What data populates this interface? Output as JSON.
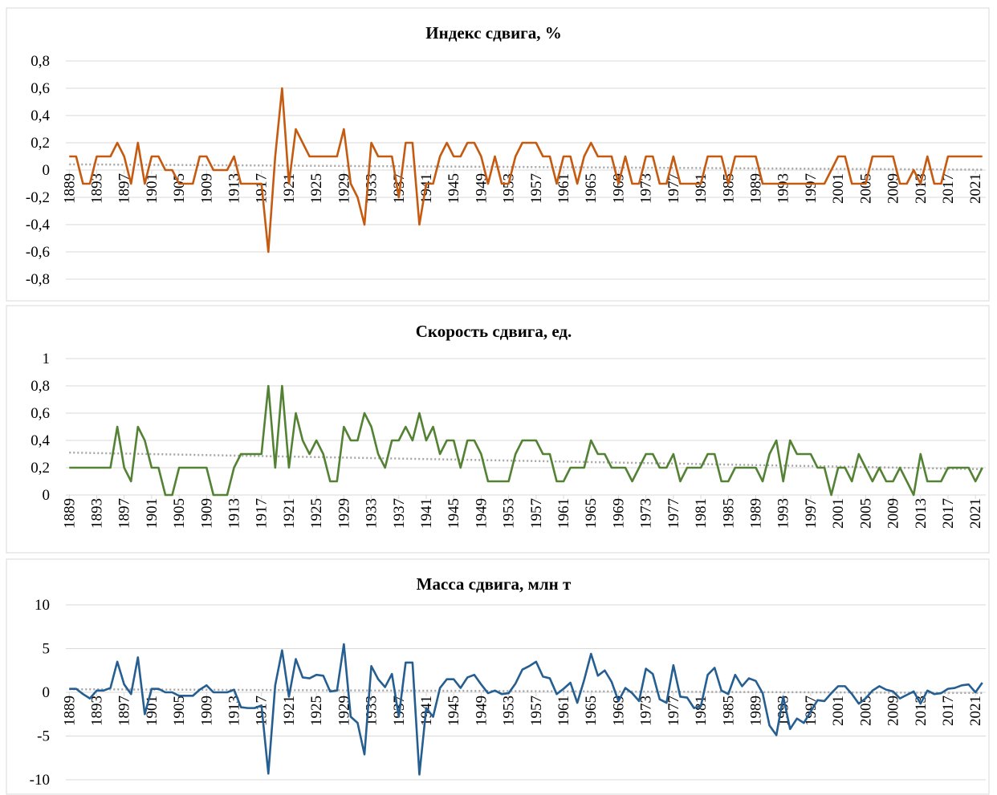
{
  "chart_data": [
    {
      "type": "line",
      "title": "Индекс сдвига, %",
      "x": [
        1889,
        1890,
        1891,
        1892,
        1893,
        1894,
        1895,
        1896,
        1897,
        1898,
        1899,
        1900,
        1901,
        1902,
        1903,
        1904,
        1905,
        1906,
        1907,
        1908,
        1909,
        1910,
        1911,
        1912,
        1913,
        1914,
        1915,
        1916,
        1917,
        1918,
        1919,
        1920,
        1921,
        1922,
        1923,
        1924,
        1925,
        1926,
        1927,
        1928,
        1929,
        1930,
        1931,
        1932,
        1933,
        1934,
        1935,
        1936,
        1937,
        1938,
        1939,
        1940,
        1941,
        1942,
        1943,
        1944,
        1945,
        1946,
        1947,
        1948,
        1949,
        1950,
        1951,
        1952,
        1953,
        1954,
        1955,
        1956,
        1957,
        1958,
        1959,
        1960,
        1961,
        1962,
        1963,
        1964,
        1965,
        1966,
        1967,
        1968,
        1969,
        1970,
        1971,
        1972,
        1973,
        1974,
        1975,
        1976,
        1977,
        1978,
        1979,
        1980,
        1981,
        1982,
        1983,
        1984,
        1985,
        1986,
        1987,
        1988,
        1989,
        1990,
        1991,
        1992,
        1993,
        1994,
        1995,
        1996,
        1997,
        1998,
        1999,
        2000,
        2001,
        2002,
        2003,
        2004,
        2005,
        2006,
        2007,
        2008,
        2009,
        2010,
        2011,
        2012,
        2013,
        2014,
        2015,
        2016,
        2017,
        2018,
        2019,
        2020,
        2021,
        2022
      ],
      "series": [
        {
          "color": "#c55a11",
          "values": [
            0.1,
            0.1,
            -0.1,
            -0.1,
            0.1,
            0.1,
            0.1,
            0.2,
            0.1,
            -0.1,
            0.2,
            -0.1,
            0.1,
            0.1,
            0,
            0,
            -0.1,
            -0.1,
            -0.1,
            0.1,
            0.1,
            0,
            0,
            0,
            0.1,
            -0.1,
            -0.1,
            -0.1,
            -0.1,
            -0.6,
            0.1,
            0.6,
            -0.1,
            0.3,
            0.2,
            0.1,
            0.1,
            0.1,
            0.1,
            0.1,
            0.3,
            -0.1,
            -0.2,
            -0.4,
            0.2,
            0.1,
            0.1,
            0.1,
            -0.2,
            0.2,
            0.2,
            -0.4,
            -0.1,
            -0.1,
            0.1,
            0.2,
            0.1,
            0.1,
            0.2,
            0.2,
            0.1,
            -0.1,
            0.1,
            -0.1,
            -0.1,
            0.1,
            0.2,
            0.2,
            0.2,
            0.1,
            0.1,
            -0.1,
            0.1,
            0.1,
            -0.1,
            0.1,
            0.2,
            0.1,
            0.1,
            0.1,
            -0.1,
            0.1,
            -0.1,
            -0.1,
            0.1,
            0.1,
            -0.1,
            -0.1,
            0.1,
            -0.1,
            -0.1,
            -0.1,
            -0.1,
            0.1,
            0.1,
            0.1,
            -0.1,
            0.1,
            0.1,
            0.1,
            0.1,
            -0.1,
            -0.1,
            -0.1,
            -0.1,
            -0.1,
            -0.1,
            -0.1,
            -0.1,
            -0.1,
            -0.1,
            0,
            0.1,
            0.1,
            -0.1,
            -0.1,
            -0.1,
            0.1,
            0.1,
            0.1,
            0.1,
            -0.1,
            -0.1,
            0,
            -0.1,
            0.1,
            -0.1,
            -0.1,
            0.1,
            0.1,
            0.1,
            0.1,
            0.1,
            0.1
          ]
        }
      ],
      "xlim": [
        1888.5,
        2022.5
      ],
      "xticks": [
        1889,
        1893,
        1897,
        1901,
        1905,
        1909,
        1913,
        1917,
        1921,
        1925,
        1929,
        1933,
        1937,
        1941,
        1945,
        1949,
        1953,
        1957,
        1961,
        1965,
        1969,
        1973,
        1977,
        1981,
        1985,
        1989,
        1993,
        1997,
        2001,
        2005,
        2009,
        2013,
        2017,
        2021
      ],
      "ylim": [
        -0.8,
        0.8
      ],
      "yticks": [
        {
          "value": -0.8,
          "label": "-0,8"
        },
        {
          "value": -0.6,
          "label": "-0,6"
        },
        {
          "value": -0.4,
          "label": "-0,4"
        },
        {
          "value": -0.2,
          "label": "-0,2"
        },
        0,
        {
          "value": 0.2,
          "label": "0,2"
        },
        {
          "value": 0.4,
          "label": "0,4"
        },
        {
          "value": 0.6,
          "label": "0,6"
        },
        {
          "value": 0.8,
          "label": "0,8"
        }
      ],
      "grid": true,
      "trendline": true
    },
    {
      "type": "line",
      "title": "Скорость сдвига, ед.",
      "x": [
        1889,
        1890,
        1891,
        1892,
        1893,
        1894,
        1895,
        1896,
        1897,
        1898,
        1899,
        1900,
        1901,
        1902,
        1903,
        1904,
        1905,
        1906,
        1907,
        1908,
        1909,
        1910,
        1911,
        1912,
        1913,
        1914,
        1915,
        1916,
        1917,
        1918,
        1919,
        1920,
        1921,
        1922,
        1923,
        1924,
        1925,
        1926,
        1927,
        1928,
        1929,
        1930,
        1931,
        1932,
        1933,
        1934,
        1935,
        1936,
        1937,
        1938,
        1939,
        1940,
        1941,
        1942,
        1943,
        1944,
        1945,
        1946,
        1947,
        1948,
        1949,
        1950,
        1951,
        1952,
        1953,
        1954,
        1955,
        1956,
        1957,
        1958,
        1959,
        1960,
        1961,
        1962,
        1963,
        1964,
        1965,
        1966,
        1967,
        1968,
        1969,
        1970,
        1971,
        1972,
        1973,
        1974,
        1975,
        1976,
        1977,
        1978,
        1979,
        1980,
        1981,
        1982,
        1983,
        1984,
        1985,
        1986,
        1987,
        1988,
        1989,
        1990,
        1991,
        1992,
        1993,
        1994,
        1995,
        1996,
        1997,
        1998,
        1999,
        2000,
        2001,
        2002,
        2003,
        2004,
        2005,
        2006,
        2007,
        2008,
        2009,
        2010,
        2011,
        2012,
        2013,
        2014,
        2015,
        2016,
        2017,
        2018,
        2019,
        2020,
        2021,
        2022
      ],
      "series": [
        {
          "color": "#548235",
          "values": [
            0.2,
            0.2,
            0.2,
            0.2,
            0.2,
            0.2,
            0.2,
            0.5,
            0.2,
            0.1,
            0.5,
            0.4,
            0.2,
            0.2,
            0,
            0,
            0.2,
            0.2,
            0.2,
            0.2,
            0.2,
            0,
            0,
            0,
            0.2,
            0.3,
            0.3,
            0.3,
            0.3,
            0.8,
            0.2,
            0.8,
            0.2,
            0.6,
            0.4,
            0.3,
            0.4,
            0.3,
            0.1,
            0.1,
            0.5,
            0.4,
            0.4,
            0.6,
            0.5,
            0.3,
            0.2,
            0.4,
            0.4,
            0.5,
            0.4,
            0.6,
            0.4,
            0.5,
            0.3,
            0.4,
            0.4,
            0.2,
            0.4,
            0.4,
            0.3,
            0.1,
            0.1,
            0.1,
            0.1,
            0.3,
            0.4,
            0.4,
            0.4,
            0.3,
            0.3,
            0.1,
            0.1,
            0.2,
            0.2,
            0.2,
            0.4,
            0.3,
            0.3,
            0.2,
            0.2,
            0.2,
            0.1,
            0.2,
            0.3,
            0.3,
            0.2,
            0.2,
            0.3,
            0.1,
            0.2,
            0.2,
            0.2,
            0.3,
            0.3,
            0.1,
            0.1,
            0.2,
            0.2,
            0.2,
            0.2,
            0.1,
            0.3,
            0.4,
            0.1,
            0.4,
            0.3,
            0.3,
            0.3,
            0.2,
            0.2,
            0,
            0.2,
            0.2,
            0.1,
            0.3,
            0.2,
            0.1,
            0.2,
            0.1,
            0.1,
            0.2,
            0.1,
            0,
            0.3,
            0.1,
            0.1,
            0.1,
            0.2,
            0.2,
            0.2,
            0.2,
            0.1,
            0.2
          ]
        }
      ],
      "xlim": [
        1888.5,
        2022.5
      ],
      "xticks": [
        1889,
        1893,
        1897,
        1901,
        1905,
        1909,
        1913,
        1917,
        1921,
        1925,
        1929,
        1933,
        1937,
        1941,
        1945,
        1949,
        1953,
        1957,
        1961,
        1965,
        1969,
        1973,
        1977,
        1981,
        1985,
        1989,
        1993,
        1997,
        2001,
        2005,
        2009,
        2013,
        2017,
        2021
      ],
      "ylim": [
        0,
        1
      ],
      "yticks": [
        0,
        {
          "value": 0.2,
          "label": "0,2"
        },
        {
          "value": 0.4,
          "label": "0,4"
        },
        {
          "value": 0.6,
          "label": "0,6"
        },
        {
          "value": 0.8,
          "label": "0,8"
        },
        1
      ],
      "grid": true,
      "trendline": true
    },
    {
      "type": "line",
      "title": "Масса сдвига, млн т",
      "x": [
        1889,
        1890,
        1891,
        1892,
        1893,
        1894,
        1895,
        1896,
        1897,
        1898,
        1899,
        1900,
        1901,
        1902,
        1903,
        1904,
        1905,
        1906,
        1907,
        1908,
        1909,
        1910,
        1911,
        1912,
        1913,
        1914,
        1915,
        1916,
        1917,
        1918,
        1919,
        1920,
        1921,
        1922,
        1923,
        1924,
        1925,
        1926,
        1927,
        1928,
        1929,
        1930,
        1931,
        1932,
        1933,
        1934,
        1935,
        1936,
        1937,
        1938,
        1939,
        1940,
        1941,
        1942,
        1943,
        1944,
        1945,
        1946,
        1947,
        1948,
        1949,
        1950,
        1951,
        1952,
        1953,
        1954,
        1955,
        1956,
        1957,
        1958,
        1959,
        1960,
        1961,
        1962,
        1963,
        1964,
        1965,
        1966,
        1967,
        1968,
        1969,
        1970,
        1971,
        1972,
        1973,
        1974,
        1975,
        1976,
        1977,
        1978,
        1979,
        1980,
        1981,
        1982,
        1983,
        1984,
        1985,
        1986,
        1987,
        1988,
        1989,
        1990,
        1991,
        1992,
        1993,
        1994,
        1995,
        1996,
        1997,
        1998,
        1999,
        2000,
        2001,
        2002,
        2003,
        2004,
        2005,
        2006,
        2007,
        2008,
        2009,
        2010,
        2011,
        2012,
        2013,
        2014,
        2015,
        2016,
        2017,
        2018,
        2019,
        2020,
        2021,
        2022
      ],
      "series": [
        {
          "color": "#255e91",
          "values": [
            0.4,
            0.4,
            -0.2,
            -0.7,
            0.2,
            0.2,
            0.5,
            3.5,
            0.9,
            -0.2,
            4,
            -2.5,
            0.4,
            0.4,
            0,
            0,
            -0.4,
            -0.4,
            -0.4,
            0.3,
            0.8,
            0,
            0,
            0,
            0.3,
            -1.7,
            -1.8,
            -1.8,
            -1.5,
            -9.3,
            0.8,
            4.8,
            -0.5,
            3.8,
            1.7,
            1.6,
            2,
            1.9,
            0.1,
            0.2,
            5.5,
            -2.8,
            -3.5,
            -7.1,
            3,
            1.5,
            0.6,
            2.1,
            -2.8,
            3.4,
            3.4,
            -9.4,
            -1.8,
            -2.8,
            0.5,
            1.5,
            1.5,
            0.5,
            1.7,
            2,
            0.9,
            -0.1,
            0.2,
            -0.2,
            -0.1,
            1,
            2.6,
            3,
            3.5,
            1.8,
            1.6,
            -0.2,
            0.4,
            1.1,
            -1.2,
            1.4,
            4.4,
            1.9,
            2.5,
            1.2,
            -1,
            0.5,
            -0.1,
            -1,
            2.7,
            2.1,
            -0.8,
            -1.2,
            3.1,
            -0.5,
            -0.6,
            -1.8,
            -1.6,
            2,
            2.8,
            0.2,
            -0.2,
            2,
            0.7,
            1.6,
            1.3,
            -0.1,
            -3.8,
            -4.9,
            -0.5,
            -4.2,
            -3,
            -3.5,
            -2.2,
            -0.9,
            -1,
            -0.1,
            0.7,
            0.7,
            -0.2,
            -1.3,
            -0.7,
            0.2,
            0.7,
            0.3,
            0.1,
            -0.7,
            -0.3,
            0.1,
            -1.3,
            0.2,
            -0.2,
            -0.1,
            0.4,
            0.5,
            0.8,
            0.9,
            0,
            1.1
          ]
        }
      ],
      "xlim": [
        1888.5,
        2022.5
      ],
      "xticks": [
        1889,
        1893,
        1897,
        1901,
        1905,
        1909,
        1913,
        1917,
        1921,
        1925,
        1929,
        1933,
        1937,
        1941,
        1945,
        1949,
        1953,
        1957,
        1961,
        1965,
        1969,
        1973,
        1977,
        1981,
        1985,
        1989,
        1993,
        1997,
        2001,
        2005,
        2009,
        2013,
        2017,
        2021
      ],
      "ylim": [
        -10,
        10
      ],
      "yticks": [
        -10,
        -5,
        0,
        5,
        10
      ],
      "grid": true,
      "trendline": true
    }
  ]
}
